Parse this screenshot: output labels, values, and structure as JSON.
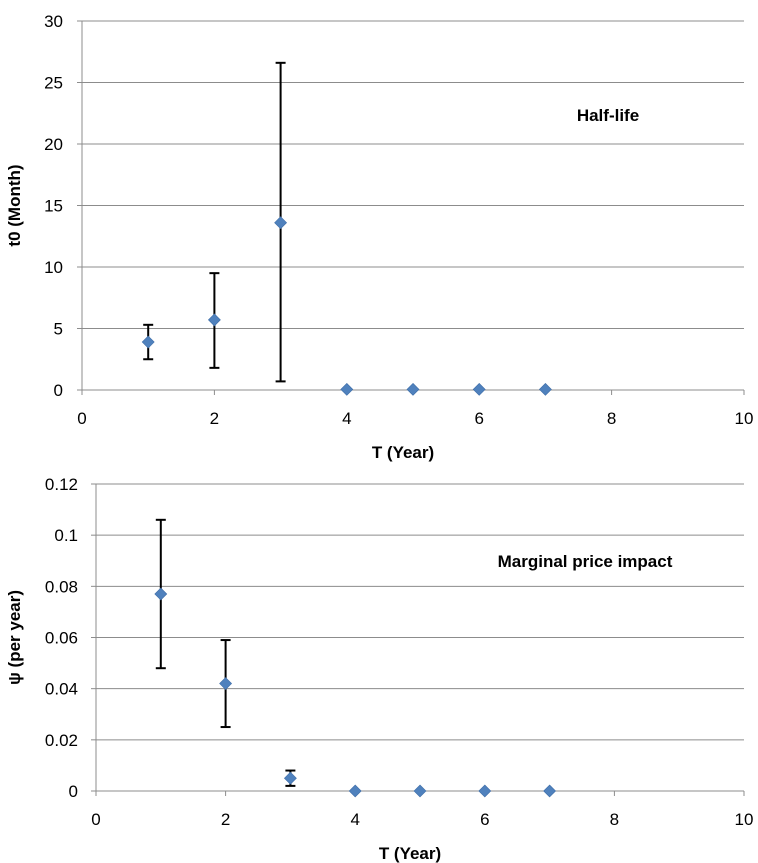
{
  "chart_data": [
    {
      "type": "scatter",
      "title": "",
      "annotation": "Half-life",
      "xlabel": "T (Year)",
      "ylabel": "t0 (Month)",
      "xlim": [
        0,
        10
      ],
      "ylim": [
        0,
        30
      ],
      "xticks": [
        "0",
        "2",
        "4",
        "6",
        "8",
        "10"
      ],
      "yticks": [
        "0",
        "5",
        "10",
        "15",
        "20",
        "25",
        "30"
      ],
      "grid": "horizontal",
      "marker_color": "#4F81BD",
      "errorbar_color": "#000000",
      "points": [
        {
          "x": 1,
          "y": 3.9,
          "low": 2.5,
          "high": 5.3
        },
        {
          "x": 2,
          "y": 5.7,
          "low": 1.8,
          "high": 9.5
        },
        {
          "x": 3,
          "y": 13.6,
          "low": 0.7,
          "high": 26.6
        },
        {
          "x": 4,
          "y": 0.05
        },
        {
          "x": 5,
          "y": 0.05
        },
        {
          "x": 6,
          "y": 0.05
        },
        {
          "x": 7,
          "y": 0.05
        }
      ]
    },
    {
      "type": "scatter",
      "title": "",
      "annotation": "Marginal price impact",
      "xlabel": "T (Year)",
      "ylabel": "ψ (per year)",
      "xlim": [
        0,
        10
      ],
      "ylim": [
        0,
        0.12
      ],
      "xticks": [
        "0",
        "2",
        "4",
        "6",
        "8",
        "10"
      ],
      "yticks": [
        "0",
        "0.02",
        "0.04",
        "0.06",
        "0.08",
        "0.1",
        "0.12"
      ],
      "grid": "horizontal",
      "marker_color": "#4F81BD",
      "errorbar_color": "#000000",
      "points": [
        {
          "x": 1,
          "y": 0.077,
          "low": 0.048,
          "high": 0.106
        },
        {
          "x": 2,
          "y": 0.042,
          "low": 0.025,
          "high": 0.059
        },
        {
          "x": 3,
          "y": 0.005,
          "low": 0.002,
          "high": 0.008
        },
        {
          "x": 4,
          "y": 0.0
        },
        {
          "x": 5,
          "y": 0.0
        },
        {
          "x": 6,
          "y": 0.0
        },
        {
          "x": 7,
          "y": 0.0
        }
      ]
    }
  ]
}
